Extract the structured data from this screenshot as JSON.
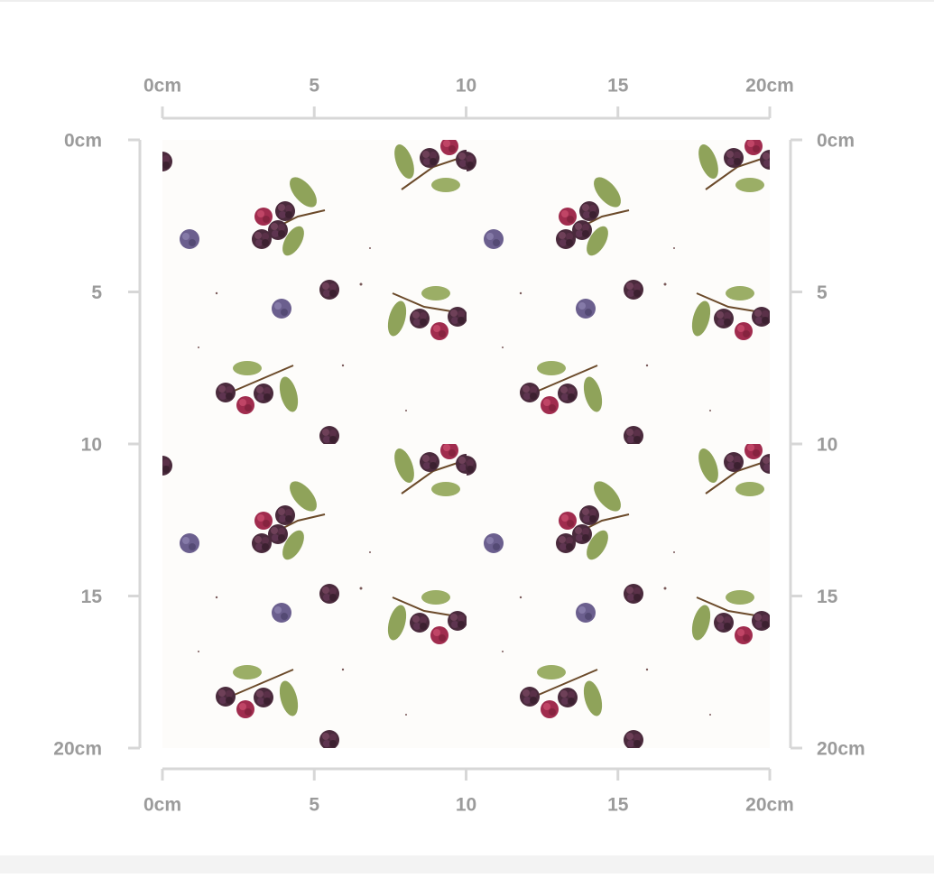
{
  "rulers": {
    "top": [
      "0cm",
      "5",
      "10",
      "15",
      "20cm"
    ],
    "bottom": [
      "0cm",
      "5",
      "10",
      "15",
      "20cm"
    ],
    "left": [
      "0cm",
      "5",
      "10",
      "15",
      "20cm"
    ],
    "right": [
      "0cm",
      "5",
      "10",
      "15",
      "20cm"
    ]
  }
}
